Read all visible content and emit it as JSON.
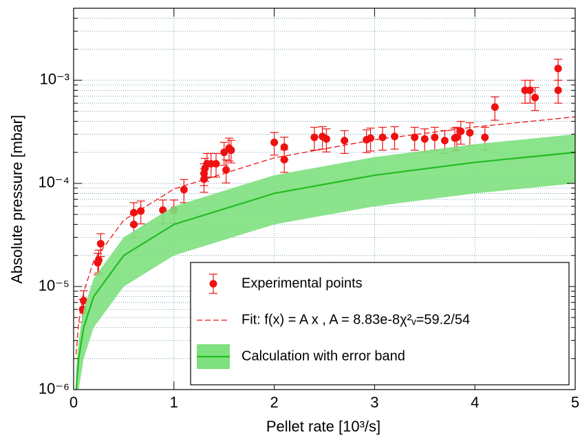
{
  "chart_data": {
    "type": "scatter",
    "xlabel": "Pellet rate [10³/s]",
    "ylabel": "Absolute pressure [mbar]",
    "xlim": [
      0,
      5
    ],
    "ylim": [
      1e-06,
      0.005
    ],
    "xticks": [
      0,
      1,
      2,
      3,
      4,
      5
    ],
    "yticks": [
      {
        "value": 1e-06,
        "label": "10⁻⁶"
      },
      {
        "value": 1e-05,
        "label": "10⁻⁵"
      },
      {
        "value": 0.0001,
        "label": "10⁻⁴"
      },
      {
        "value": 0.001,
        "label": "10⁻³"
      }
    ],
    "ylog": true,
    "grid": true,
    "legend": "lower right",
    "series": [
      {
        "name": "Experimental points",
        "type": "errorbar",
        "color": "#ee1111",
        "x": [
          0.09,
          0.1,
          0.24,
          0.25,
          0.27,
          0.6,
          0.6,
          0.67,
          0.89,
          1.0,
          1.1,
          1.3,
          1.3,
          1.31,
          1.33,
          1.37,
          1.42,
          1.5,
          1.52,
          1.55,
          1.57,
          2.0,
          2.1,
          2.1,
          2.4,
          2.48,
          2.52,
          2.7,
          2.92,
          2.96,
          3.08,
          3.2,
          3.4,
          3.5,
          3.6,
          3.7,
          3.8,
          3.82,
          3.86,
          3.95,
          4.1,
          4.2,
          4.5,
          4.55,
          4.6,
          4.83,
          4.83
        ],
        "values": [
          6e-06,
          7.3e-06,
          1.7e-05,
          1.8e-05,
          2.6e-05,
          4e-05,
          5.2e-05,
          5.4e-05,
          5.5e-05,
          5.5e-05,
          8.7e-05,
          0.00011,
          0.000125,
          0.00014,
          0.000155,
          0.000155,
          0.000155,
          0.0002,
          0.000135,
          0.00022,
          0.00021,
          0.00025,
          0.000225,
          0.00017,
          0.00028,
          0.000285,
          0.00027,
          0.00026,
          0.000265,
          0.000275,
          0.00028,
          0.000285,
          0.00028,
          0.00027,
          0.00028,
          0.00026,
          0.000275,
          0.00028,
          0.00032,
          0.00031,
          0.00028,
          0.00055,
          0.0008,
          0.0008,
          0.00068,
          0.0013,
          0.0008
        ],
        "errors": [
          1.5e-06,
          1.8e-06,
          4e-06,
          4.5e-06,
          6.5e-06,
          1e-05,
          1.3e-05,
          1.35e-05,
          1.4e-05,
          1.4e-05,
          2.2e-05,
          2.8e-05,
          3e-05,
          3.5e-05,
          4e-05,
          4e-05,
          4e-05,
          5e-05,
          3.4e-05,
          5.5e-05,
          5.2e-05,
          6.2e-05,
          5.6e-05,
          4.2e-05,
          7e-05,
          7e-05,
          6.8e-05,
          6.5e-05,
          6.6e-05,
          6.9e-05,
          7e-05,
          7e-05,
          7e-05,
          6.8e-05,
          7e-05,
          6.5e-05,
          6.9e-05,
          7e-05,
          8e-05,
          7.8e-05,
          7e-05,
          0.00014,
          0.0002,
          0.0002,
          0.00017,
          0.0003,
          0.0002
        ]
      },
      {
        "name": "Fit: f(x) = A x , A = 8.83e-8χ²ᵥ=59.2/54",
        "type": "line",
        "dashed": true,
        "color": "#ee1111",
        "x": [
          0.025,
          0.05,
          0.1,
          0.2,
          0.5,
          1,
          2,
          3,
          4,
          5
        ],
        "values": [
          2.2e-06,
          4.4e-06,
          8.8e-06,
          1.77e-05,
          4.4e-05,
          8.83e-05,
          0.000177,
          0.000265,
          0.000353,
          0.000442
        ]
      },
      {
        "name": "Calculation with error band",
        "type": "band",
        "color": "#22bb22",
        "band_color": "#7ee07e",
        "x": [
          0.025,
          0.05,
          0.1,
          0.2,
          0.5,
          1,
          2,
          3,
          4,
          5
        ],
        "values": [
          1e-06,
          2e-06,
          4e-06,
          8e-06,
          2e-05,
          4e-05,
          8e-05,
          0.00012,
          0.00016,
          0.0002
        ],
        "lower": [
          5e-07,
          1e-06,
          2e-06,
          4e-06,
          1e-05,
          2e-05,
          4e-05,
          6e-05,
          8e-05,
          0.0001
        ],
        "upper": [
          1.5e-06,
          3e-06,
          6e-06,
          1.2e-05,
          3e-05,
          6e-05,
          0.00012,
          0.00018,
          0.00024,
          0.0003
        ]
      }
    ]
  }
}
